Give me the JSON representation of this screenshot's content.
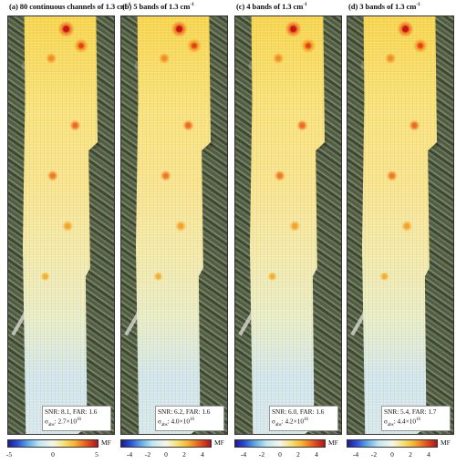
{
  "panels": [
    {
      "title": "(a) 80 continuous channels of 1.3 cm",
      "title_sup": "-1",
      "snr_far": "SNR: 8.1, FAR: 1.6",
      "sigma_label": "σ",
      "sigma_sub": "abs",
      "sigma_value": ": 2.7×10",
      "sigma_exp": "16",
      "ticks": [
        "-5",
        "0",
        "5"
      ],
      "unit": "MF"
    },
    {
      "title": "(b) 5 bands of 1.3 cm",
      "title_sup": "-1",
      "snr_far": "SNR: 6.2, FAR: 1.6",
      "sigma_label": "σ",
      "sigma_sub": "abs",
      "sigma_value": ": 4.0×10",
      "sigma_exp": "16",
      "ticks": [
        "-4",
        "-2",
        "0",
        "2",
        "4"
      ],
      "unit": "MF"
    },
    {
      "title": "(c) 4 bands of 1.3 cm",
      "title_sup": "-1",
      "snr_far": "SNR: 6.0, FAR: 1.6",
      "sigma_label": "σ",
      "sigma_sub": "abs",
      "sigma_value": ": 4.2×10",
      "sigma_exp": "16",
      "ticks": [
        "-4",
        "-2",
        "0",
        "2",
        "4"
      ],
      "unit": "MF"
    },
    {
      "title": "(d) 3 bands of 1.3 cm",
      "title_sup": "-1",
      "snr_far": "SNR: 5.4, FAR: 1.7",
      "sigma_label": "σ",
      "sigma_sub": "abs",
      "sigma_value": ": 4.4×10",
      "sigma_exp": "16",
      "ticks": [
        "-4",
        "-2",
        "0",
        "2",
        "4"
      ],
      "unit": "MF"
    }
  ],
  "colors": {
    "low": "#1d1a8f",
    "mid": "#f4f7e6",
    "high": "#b0131a"
  }
}
